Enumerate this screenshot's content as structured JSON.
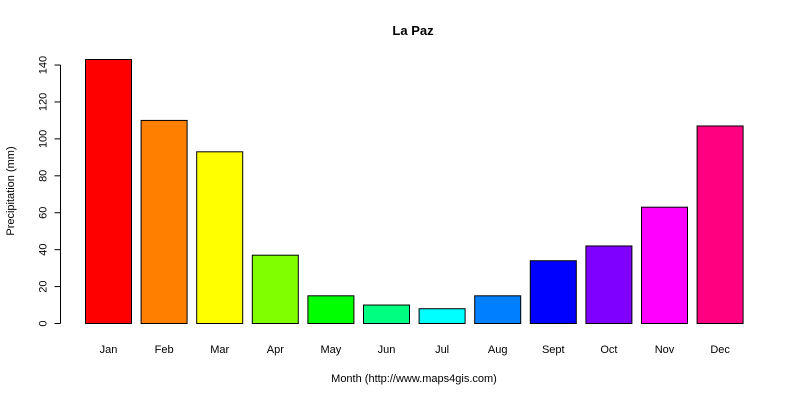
{
  "chart_data": {
    "type": "bar",
    "title": "La Paz",
    "xlabel": "Month (http://www.maps4gis.com)",
    "ylabel": "Precipitation (mm)",
    "categories": [
      "Jan",
      "Feb",
      "Mar",
      "Apr",
      "May",
      "Jun",
      "Jul",
      "Aug",
      "Sept",
      "Oct",
      "Nov",
      "Dec"
    ],
    "values": [
      143,
      110,
      93,
      37,
      15,
      10,
      8,
      15,
      34,
      42,
      63,
      107
    ],
    "colors": [
      "#FF0000",
      "#FF8000",
      "#FFFF00",
      "#80FF00",
      "#00FF00",
      "#00FF80",
      "#00FFFF",
      "#0080FF",
      "#0000FF",
      "#8000FF",
      "#FF00FF",
      "#FF0080"
    ],
    "ylim": [
      0,
      143
    ],
    "yticks": [
      0,
      20,
      40,
      60,
      80,
      100,
      120,
      140
    ],
    "grid": false,
    "legend": "none"
  }
}
